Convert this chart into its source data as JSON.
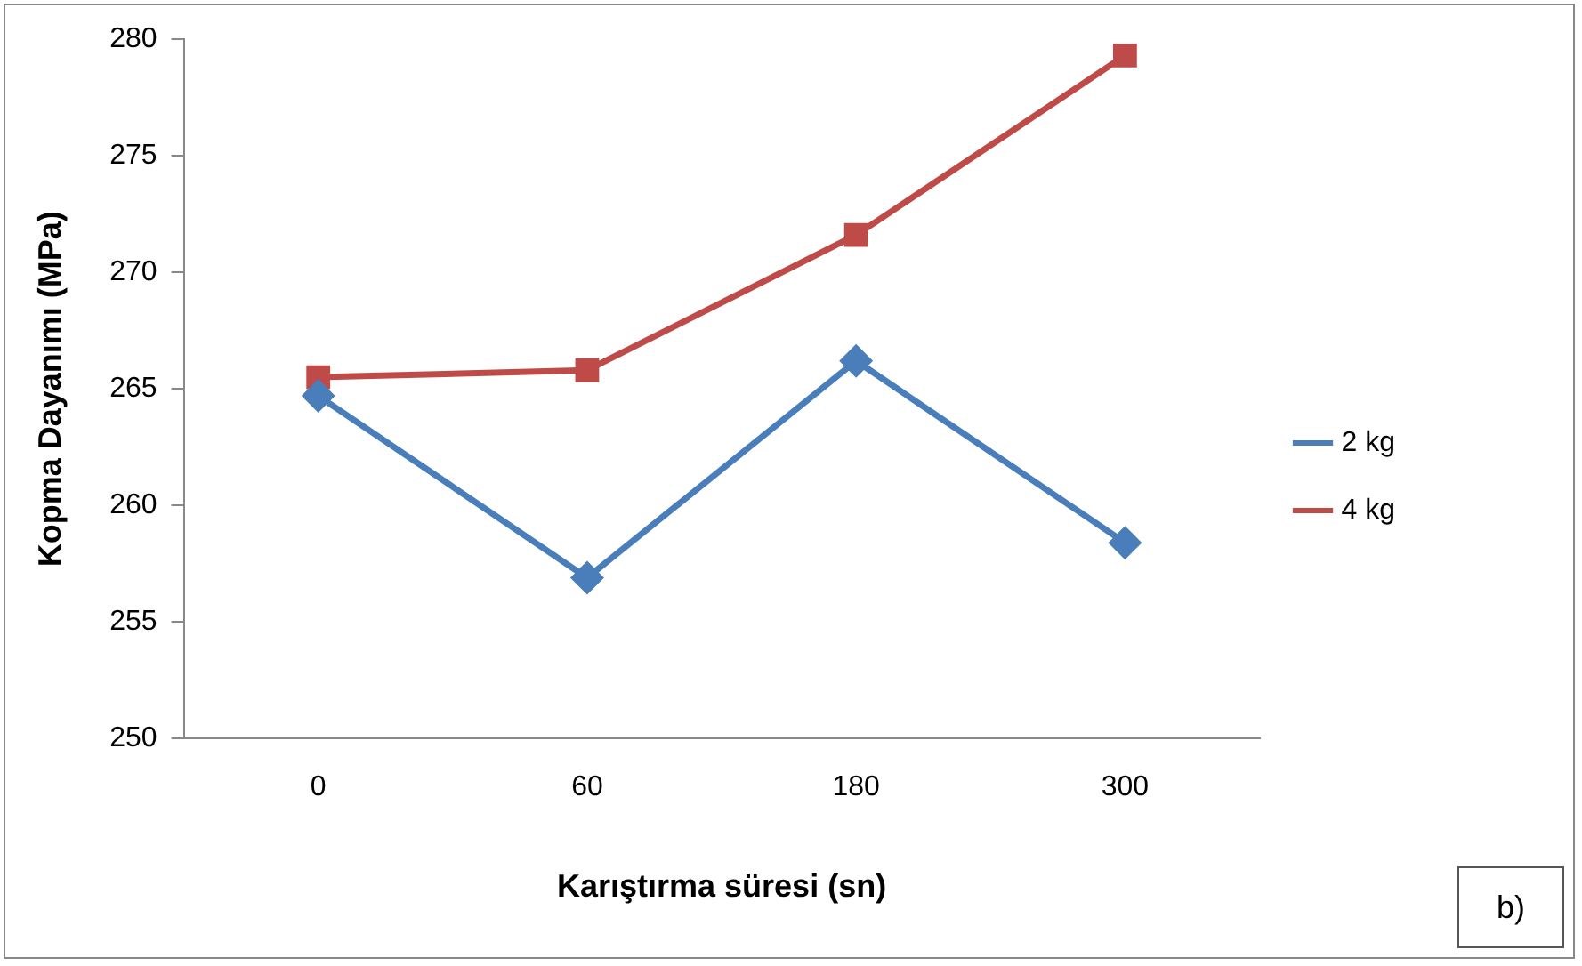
{
  "chart_data": {
    "type": "line",
    "xlabel": "Karıştırma süresi (sn)",
    "ylabel": "Kopma Dayanımı (MPa)",
    "categories": [
      "0",
      "60",
      "180",
      "300"
    ],
    "series": [
      {
        "name": "2 kg",
        "color": "#4a7ebb",
        "marker": "diamond",
        "values": [
          264.7,
          256.9,
          266.2,
          258.4
        ]
      },
      {
        "name": "4 kg",
        "color": "#be4b48",
        "marker": "square",
        "values": [
          265.5,
          265.8,
          271.6,
          279.3
        ]
      }
    ],
    "ylim": [
      250,
      280
    ],
    "yticks": [
      250,
      255,
      260,
      265,
      270,
      275,
      280
    ],
    "grid": false,
    "legend": "right",
    "line_style": "solid",
    "annotations": [
      "b)"
    ]
  }
}
